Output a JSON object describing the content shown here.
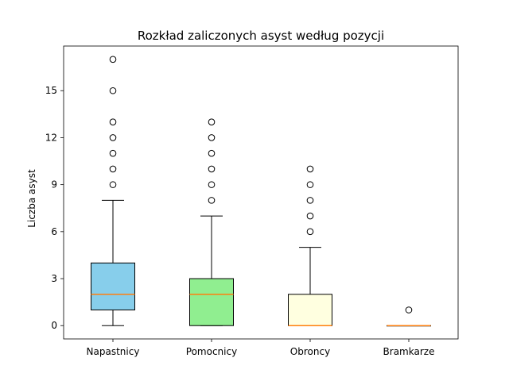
{
  "chart_data": {
    "type": "box",
    "title": "Rozkład zaliczonych asyst według pozycji",
    "xlabel": "",
    "ylabel": "Liczba asyst",
    "ylim": [
      -0.85,
      17.85
    ],
    "yticks": [
      0,
      3,
      6,
      9,
      12,
      15
    ],
    "grid": false,
    "categories": [
      "Napastnicy",
      "Pomocnicy",
      "Obroncy",
      "Bramkarze"
    ],
    "boxes": [
      {
        "category": "Napastnicy",
        "whisker_low": 0,
        "q1": 1,
        "median": 2,
        "q3": 4,
        "whisker_high": 8,
        "outliers": [
          9,
          10,
          11,
          12,
          13,
          15,
          17
        ],
        "color": "#87ceeb"
      },
      {
        "category": "Pomocnicy",
        "whisker_low": 0,
        "q1": 0,
        "median": 2,
        "q3": 3,
        "whisker_high": 7,
        "outliers": [
          8,
          9,
          10,
          11,
          12,
          13
        ],
        "color": "#90ee90"
      },
      {
        "category": "Obroncy",
        "whisker_low": 0,
        "q1": 0,
        "median": 0,
        "q3": 2,
        "whisker_high": 5,
        "outliers": [
          6,
          7,
          8,
          9,
          10
        ],
        "color": "#ffffe0"
      },
      {
        "category": "Bramkarze",
        "whisker_low": 0,
        "q1": 0,
        "median": 0,
        "q3": 0,
        "whisker_high": 0,
        "outliers": [
          1
        ],
        "color": "#f08080"
      }
    ],
    "median_color": "#ff7f0e"
  }
}
